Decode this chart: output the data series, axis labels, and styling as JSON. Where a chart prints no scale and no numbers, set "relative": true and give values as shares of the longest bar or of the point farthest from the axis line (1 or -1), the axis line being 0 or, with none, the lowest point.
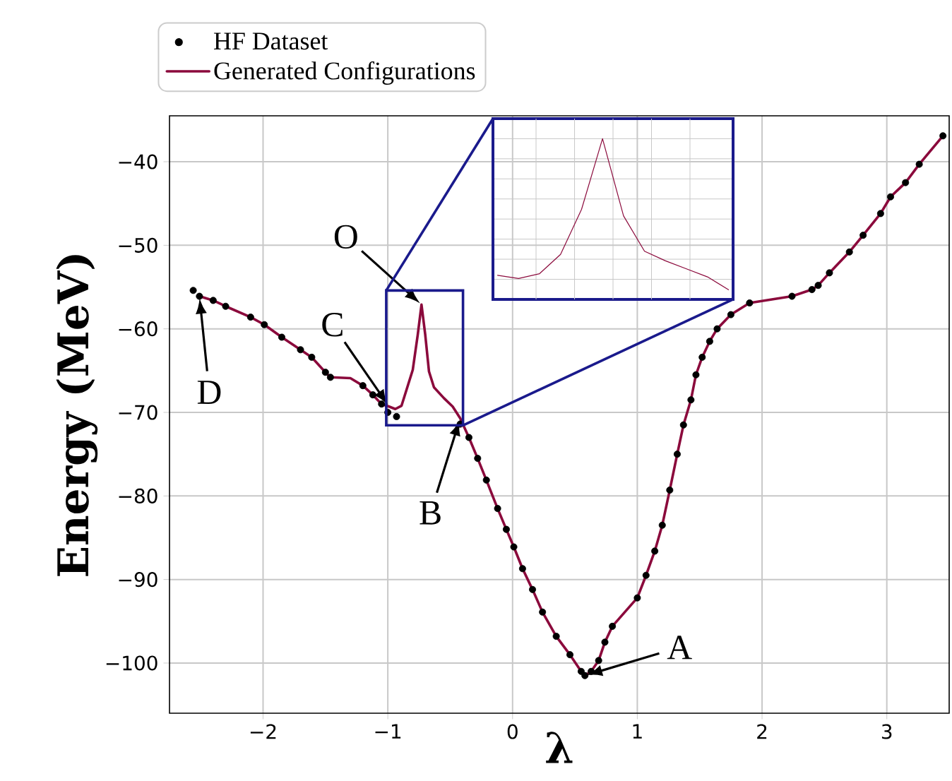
{
  "chart_data": [
    {
      "type": "line",
      "xlabel": "λ",
      "ylabel": "Energy (MeV)",
      "xlim": [
        -2.75,
        3.5
      ],
      "ylim": [
        -106,
        -34.5
      ],
      "xticks": [
        {
          "value": -2,
          "label": "−2"
        },
        {
          "value": -1,
          "label": "−1"
        },
        0,
        1,
        2,
        3
      ],
      "yticks": [
        {
          "value": -100,
          "label": "−100"
        },
        {
          "value": -90,
          "label": "−90"
        },
        {
          "value": -80,
          "label": "−80"
        },
        {
          "value": -70,
          "label": "−70"
        },
        {
          "value": -60,
          "label": "−60"
        },
        {
          "value": -50,
          "label": "−50"
        },
        {
          "value": -40,
          "label": "−40"
        }
      ],
      "grid": true,
      "legend": "top left",
      "series": [
        {
          "name": "HF Dataset",
          "type": "scatter",
          "marker": "circle",
          "color": "#000000",
          "x": [
            -2.56,
            -2.51,
            -2.4,
            -2.3,
            -2.1,
            -1.99,
            -1.85,
            -1.7,
            -1.61,
            -1.5,
            -1.46,
            -1.2,
            -1.12,
            -1.05,
            -1.0,
            -0.93,
            -0.42,
            -0.35,
            -0.28,
            -0.21,
            -0.12,
            -0.05,
            0.01,
            0.08,
            0.16,
            0.24,
            0.35,
            0.46,
            0.55,
            0.58,
            0.63,
            0.69,
            0.74,
            0.8,
            1.0,
            1.07,
            1.14,
            1.2,
            1.26,
            1.32,
            1.37,
            1.43,
            1.47,
            1.52,
            1.58,
            1.64,
            1.75,
            1.9,
            2.24,
            2.4,
            2.45,
            2.54,
            2.7,
            2.81,
            2.95,
            3.03,
            3.15,
            3.26,
            3.45
          ],
          "values": [
            -55.4,
            -56.1,
            -56.6,
            -57.3,
            -58.6,
            -59.5,
            -61,
            -62.5,
            -63.4,
            -65.2,
            -65.8,
            -66.8,
            -67.9,
            -69,
            -70,
            -70.5,
            -71.4,
            -73,
            -75.5,
            -78.1,
            -81.5,
            -84,
            -86.1,
            -88.7,
            -91.2,
            -93.9,
            -96.8,
            -99,
            -101,
            -101.5,
            -101,
            -99.7,
            -97.5,
            -95.6,
            -92.2,
            -89.5,
            -86.6,
            -83.5,
            -79.3,
            -75,
            -71.5,
            -68.5,
            -65.5,
            -63.4,
            -61.5,
            -60,
            -58.3,
            -56.9,
            -56.1,
            -55.3,
            -54.8,
            -53.3,
            -50.8,
            -48.8,
            -46.2,
            -44.2,
            -42.5,
            -40.3,
            -36.9
          ]
        },
        {
          "name": "Generated Configurations",
          "line_style": "solid",
          "color": "#8b0a3c",
          "x": [
            -2.51,
            -2.4,
            -2.3,
            -2.1,
            -1.99,
            -1.85,
            -1.7,
            -1.61,
            -1.5,
            -1.46,
            -1.3,
            -1.2,
            -1.12,
            -1.05,
            -0.99,
            -0.94,
            -0.89,
            -0.8,
            -0.76,
            -0.73,
            -0.7,
            -0.67,
            -0.63,
            -0.55,
            -0.48,
            -0.42,
            -0.35,
            -0.28,
            -0.21,
            -0.12,
            -0.05,
            0.01,
            0.08,
            0.16,
            0.24,
            0.35,
            0.46,
            0.55,
            0.58,
            0.63,
            0.69,
            0.74,
            0.8,
            1.0,
            1.07,
            1.14,
            1.2,
            1.26,
            1.32,
            1.37,
            1.43,
            1.47,
            1.52,
            1.58,
            1.64,
            1.75,
            1.9,
            2.24,
            2.4,
            2.45,
            2.54,
            2.7,
            2.81,
            2.95,
            3.03,
            3.15,
            3.26,
            3.45
          ],
          "values": [
            -56.1,
            -56.6,
            -57.3,
            -58.6,
            -59.5,
            -61,
            -62.5,
            -63.4,
            -65.2,
            -65.8,
            -65.9,
            -66.8,
            -67.9,
            -69,
            -69.3,
            -69.6,
            -69.2,
            -64.9,
            -60.7,
            -57.1,
            -60.7,
            -65.1,
            -67,
            -68.3,
            -69.3,
            -70.7,
            -73,
            -75.5,
            -78.1,
            -81.5,
            -84,
            -86.1,
            -88.7,
            -91.2,
            -93.9,
            -96.8,
            -99,
            -101,
            -101.5,
            -101,
            -99.7,
            -97.5,
            -95.6,
            -92.2,
            -89.5,
            -86.6,
            -83.5,
            -79.3,
            -75,
            -71.5,
            -68.5,
            -65.5,
            -63.4,
            -61.5,
            -60,
            -58.3,
            -56.9,
            -56.1,
            -55.3,
            -54.8,
            -53.3,
            -50.8,
            -48.8,
            -46.2,
            -44.2,
            -42.5,
            -40.3,
            -36.9
          ]
        }
      ],
      "annotations": [
        {
          "text": "O",
          "x": -0.73,
          "y": -57.1
        },
        {
          "text": "C",
          "x": -0.99,
          "y": -69.3
        },
        {
          "text": "B",
          "x": -0.42,
          "y": -70.7
        },
        {
          "text": "A",
          "x": 0.58,
          "y": -101.5
        },
        {
          "text": "D",
          "x": -2.51,
          "y": -56.1
        }
      ]
    },
    {
      "type": "line",
      "relative": true,
      "grid": true,
      "categories": [
        null,
        null,
        null,
        null,
        null,
        null,
        null,
        null,
        null,
        null,
        null,
        null
      ],
      "series": [
        {
          "line_style": "solid",
          "color": "#8b0a3c",
          "values": [
            0.15,
            0.13,
            0.16,
            0.28,
            0.56,
            1,
            0.52,
            0.3,
            0.24,
            0.19,
            0.14,
            0.06
          ]
        }
      ]
    }
  ]
}
